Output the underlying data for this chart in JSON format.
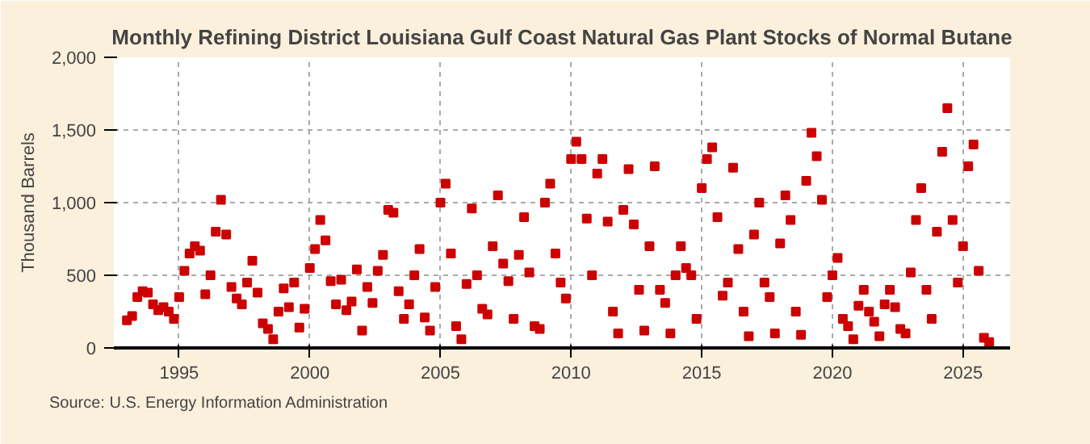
{
  "chart_data": {
    "type": "scatter",
    "title": "Monthly Refining District Louisiana Gulf Coast Natural Gas Plant Stocks of Normal Butane",
    "ylabel": "Thousand Barrels",
    "annotations": [
      "Source: U.S. Energy Information Administration"
    ],
    "x": [
      1993.0,
      1993.2,
      1993.4,
      1993.6,
      1993.8,
      1994.0,
      1994.2,
      1994.4,
      1994.6,
      1994.8,
      1995.0,
      1995.2,
      1995.4,
      1995.6,
      1995.8,
      1996.0,
      1996.2,
      1996.4,
      1996.6,
      1996.8,
      1997.0,
      1997.2,
      1997.4,
      1997.6,
      1997.8,
      1998.0,
      1998.2,
      1998.4,
      1998.6,
      1998.8,
      1999.0,
      1999.2,
      1999.4,
      1999.6,
      1999.8,
      2000.0,
      2000.2,
      2000.4,
      2000.6,
      2000.8,
      2001.0,
      2001.2,
      2001.4,
      2001.6,
      2001.8,
      2002.0,
      2002.2,
      2002.4,
      2002.6,
      2002.8,
      2003.0,
      2003.2,
      2003.4,
      2003.6,
      2003.8,
      2004.0,
      2004.2,
      2004.4,
      2004.6,
      2004.8,
      2005.0,
      2005.2,
      2005.4,
      2005.6,
      2005.8,
      2006.0,
      2006.2,
      2006.4,
      2006.6,
      2006.8,
      2007.0,
      2007.2,
      2007.4,
      2007.6,
      2007.8,
      2008.0,
      2008.2,
      2008.4,
      2008.6,
      2008.8,
      2009.0,
      2009.2,
      2009.4,
      2009.6,
      2009.8,
      2010.0,
      2010.2,
      2010.4,
      2010.6,
      2010.8,
      2011.0,
      2011.2,
      2011.4,
      2011.6,
      2011.8,
      2012.0,
      2012.2,
      2012.4,
      2012.6,
      2012.8,
      2013.0,
      2013.2,
      2013.4,
      2013.6,
      2013.8,
      2014.0,
      2014.2,
      2014.4,
      2014.6,
      2014.8,
      2015.0,
      2015.2,
      2015.4,
      2015.6,
      2015.8,
      2016.0,
      2016.2,
      2016.4,
      2016.6,
      2016.8,
      2017.0,
      2017.2,
      2017.4,
      2017.6,
      2017.8,
      2018.0,
      2018.2,
      2018.4,
      2018.6,
      2018.8,
      2019.0,
      2019.2,
      2019.4,
      2019.6,
      2019.8,
      2020.0,
      2020.2,
      2020.4,
      2020.6,
      2020.8,
      2021.0,
      2021.2,
      2021.4,
      2021.6,
      2021.8,
      2022.0,
      2022.2,
      2022.4,
      2022.6,
      2022.8,
      2023.0,
      2023.2,
      2023.4,
      2023.6,
      2023.8,
      2024.0,
      2024.2,
      2024.4,
      2024.6,
      2024.8,
      2025.0,
      2025.2,
      2025.4,
      2025.6,
      2025.8,
      2026.0
    ],
    "series": [
      {
        "color": "#cc0000",
        "values": [
          190,
          220,
          350,
          390,
          380,
          300,
          260,
          280,
          250,
          200,
          350,
          530,
          650,
          700,
          670,
          370,
          500,
          800,
          1020,
          780,
          420,
          340,
          300,
          450,
          600,
          380,
          170,
          130,
          60,
          250,
          410,
          280,
          450,
          140,
          270,
          550,
          680,
          880,
          740,
          460,
          300,
          470,
          260,
          320,
          540,
          120,
          420,
          310,
          530,
          640,
          950,
          930,
          390,
          200,
          300,
          500,
          680,
          210,
          120,
          420,
          1000,
          1130,
          650,
          150,
          60,
          440,
          960,
          500,
          270,
          230,
          700,
          1050,
          580,
          460,
          200,
          640,
          900,
          520,
          150,
          130,
          1000,
          1130,
          650,
          450,
          340,
          1300,
          1420,
          1300,
          890,
          500,
          1200,
          1300,
          870,
          250,
          100,
          950,
          1230,
          850,
          400,
          120,
          700,
          1250,
          400,
          310,
          100,
          500,
          700,
          550,
          500,
          200,
          1100,
          1300,
          1380,
          900,
          360,
          450,
          1240,
          680,
          250,
          80,
          780,
          1000,
          450,
          350,
          100,
          720,
          1050,
          880,
          250,
          90,
          1150,
          1480,
          1320,
          1020,
          350,
          500,
          620,
          200,
          150,
          60,
          290,
          400,
          250,
          180,
          80,
          300,
          400,
          280,
          130,
          100,
          520,
          880,
          1100,
          400,
          200,
          800,
          1350,
          1650,
          880,
          450,
          700,
          1250,
          1400,
          530,
          70,
          40
        ]
      }
    ],
    "xlim": [
      1992.5,
      2026.8
    ],
    "ylim": [
      0,
      2000
    ],
    "xticks": [
      1995,
      2000,
      2005,
      2010,
      2015,
      2020,
      2025
    ],
    "yticks": [
      {
        "value": 0,
        "label": "0"
      },
      {
        "value": 500,
        "label": "500"
      },
      {
        "value": 1000,
        "label": "1,000"
      },
      {
        "value": 1500,
        "label": "1,500"
      },
      {
        "value": 2000,
        "label": "2,000"
      }
    ],
    "grid": true,
    "marker": "square"
  }
}
